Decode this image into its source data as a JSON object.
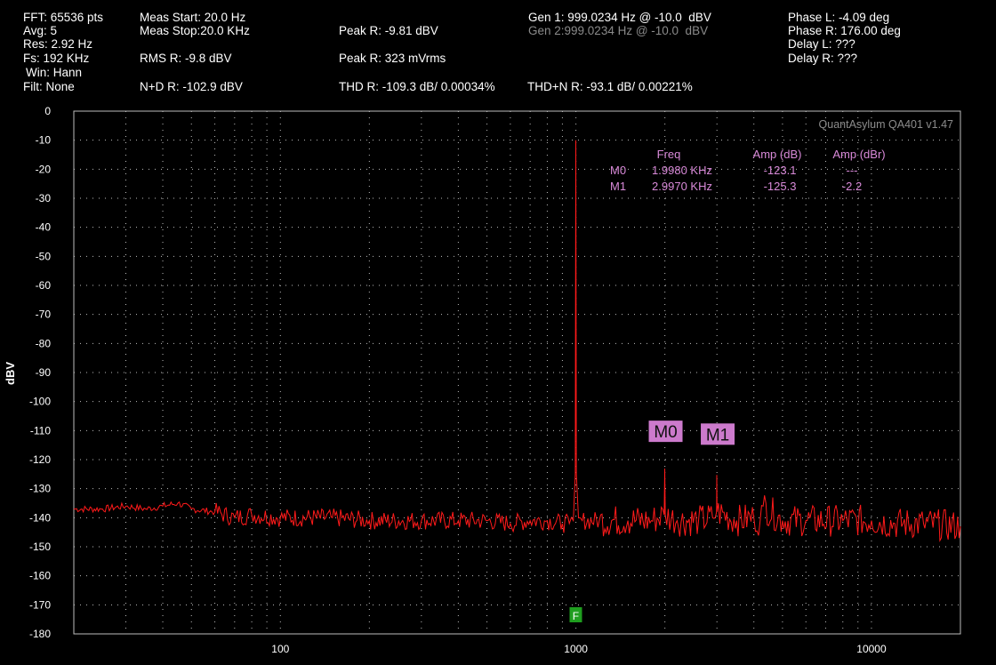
{
  "header": {
    "fft": "FFT: 65536 pts",
    "avg": "Avg: 5",
    "res": "Res: 2.92 Hz",
    "fs": "Fs: 192 KHz",
    "win": "Win: Hann",
    "filt": "Filt: None",
    "meas_start": "Meas Start: 20.0 Hz",
    "meas_stop": "Meas Stop:20.0 KHz",
    "rms_r": "RMS R: -9.8 dBV",
    "nd_r": "N+D R: -102.9 dBV",
    "peak_r_dbv": "Peak R: -9.81 dBV",
    "peak_r_mvrms": "Peak R: 323 mVrms",
    "thd_r": "THD R: -109.3 dB/ 0.00034%",
    "thdn_r": "THD+N R: -93.1 dB/ 0.00221%",
    "gen1": "Gen 1: 999.0234 Hz @ -10.0  dBV",
    "gen2": "Gen 2:999.0234 Hz @ -10.0  dBV",
    "phase_l": "Phase L: -4.09 deg",
    "phase_r": "Phase R: 176.00 deg",
    "delay_l": "Delay L: ???",
    "delay_r": "Delay R: ???"
  },
  "colors": {
    "background": "#000000",
    "grid": "#bdbdbd",
    "trace": "#ff1a1a",
    "marker": "#cc7acc",
    "marker_text": "#d98ad9",
    "fund_marker": "#1f9e1f",
    "watermark": "#8c8c8c"
  },
  "chart_data": {
    "type": "line",
    "watermark": "QuantAsylum QA401 v1.47",
    "ylabel": "dBV",
    "xlabel": "",
    "xscale": "log",
    "xlim": [
      20,
      20000
    ],
    "ylim": [
      -180,
      0
    ],
    "xticks": [
      100,
      1000,
      10000
    ],
    "xtick_labels": [
      "100",
      "1000",
      "10000"
    ],
    "yticks": [
      0,
      -10,
      -20,
      -30,
      -40,
      -50,
      -60,
      -70,
      -80,
      -90,
      -100,
      -110,
      -120,
      -130,
      -140,
      -150,
      -160,
      -170,
      -180
    ],
    "ytick_labels": [
      "0",
      "-10",
      "-20",
      "-30",
      "-40",
      "-50",
      "-60",
      "-70",
      "-80",
      "-90",
      "-100",
      "-110",
      "-120",
      "-130",
      "-140",
      "-150",
      "-160",
      "-170",
      "-180"
    ],
    "grid": true,
    "series": [
      {
        "x": [
          20,
          25,
          30,
          35,
          40,
          45,
          50,
          60,
          70,
          80,
          100,
          150,
          200,
          300,
          400,
          500,
          600,
          700,
          800,
          900,
          950,
          980,
          995,
          999,
          1003,
          1020,
          1050,
          1200,
          1500,
          1800,
          1990,
          1998,
          2006,
          2200,
          2600,
          2900,
          2992,
          2997,
          3002,
          3500,
          4000,
          4200,
          4300,
          5000,
          6000,
          8000,
          10000,
          12000,
          15000,
          20000
        ],
        "y": [
          -137,
          -137,
          -136,
          -137,
          -136,
          -135,
          -137,
          -138,
          -140,
          -139,
          -140,
          -140,
          -141,
          -141,
          -141,
          -141,
          -142,
          -141,
          -141,
          -142,
          -142,
          -141,
          -125,
          -10,
          -125,
          -140,
          -141,
          -141,
          -141,
          -141,
          -139,
          -123.1,
          -139,
          -141,
          -141,
          -140,
          -138,
          -125.3,
          -138,
          -141,
          -140,
          -141,
          -136,
          -141,
          -141,
          -141,
          -141,
          -142,
          -142,
          -143
        ]
      }
    ],
    "markers": {
      "headers": [
        "Freq",
        "Amp (dB)",
        "Amp (dBr)"
      ],
      "rows": [
        {
          "name": "M0",
          "freq": "1.9980 KHz",
          "amp_db": "-123.1",
          "amp_dbr": "---",
          "x": 1998,
          "y": -123.1
        },
        {
          "name": "M1",
          "freq": "2.9970 KHz",
          "amp_db": "-125.3",
          "amp_dbr": "-2.2",
          "x": 2997,
          "y": -125.3
        }
      ]
    },
    "fundamental_marker": {
      "label": "F",
      "x": 999
    }
  }
}
